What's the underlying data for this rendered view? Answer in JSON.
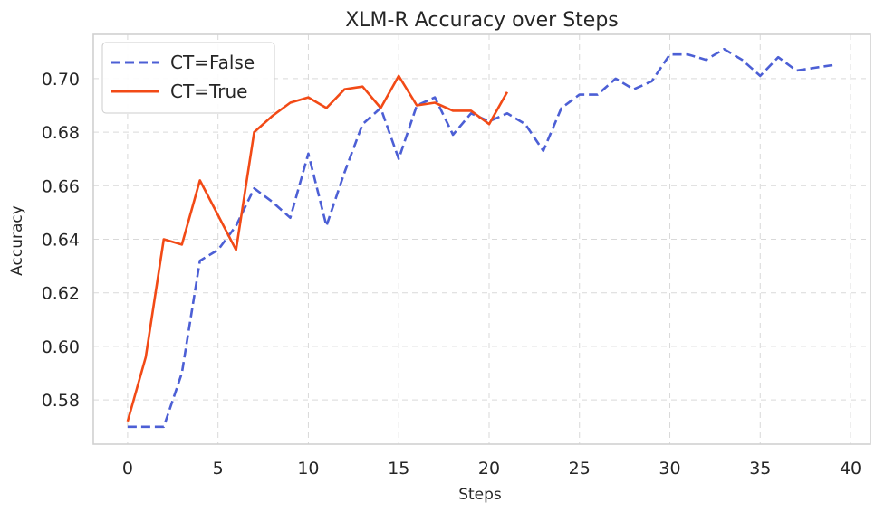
{
  "chart_data": {
    "type": "line",
    "title": "XLM-R Accuracy over Steps",
    "xlabel": "Steps",
    "ylabel": "Accuracy",
    "xlim": [
      -1.9,
      41.1
    ],
    "ylim": [
      0.5635,
      0.7165
    ],
    "xticks": [
      0,
      5,
      10,
      15,
      20,
      25,
      30,
      35,
      40
    ],
    "yticks": [
      0.58,
      0.6,
      0.62,
      0.64,
      0.66,
      0.68,
      0.7
    ],
    "ytick_labels": [
      "0.58",
      "0.60",
      "0.62",
      "0.64",
      "0.66",
      "0.68",
      "0.70"
    ],
    "grid": true,
    "legend_position": "top-left",
    "series": [
      {
        "name": "CT=False",
        "color": "#4c5fd5",
        "style": "dashed",
        "x": [
          0,
          1,
          2,
          3,
          4,
          5,
          6,
          7,
          8,
          9,
          10,
          11,
          12,
          13,
          14,
          15,
          16,
          17,
          18,
          19,
          20,
          21,
          22,
          23,
          24,
          25,
          26,
          27,
          28,
          29,
          30,
          31,
          32,
          33,
          34,
          35,
          36,
          37,
          38,
          39
        ],
        "values": [
          0.57,
          0.57,
          0.57,
          0.59,
          0.632,
          0.636,
          0.645,
          0.659,
          0.654,
          0.648,
          0.672,
          0.645,
          0.665,
          0.683,
          0.689,
          0.67,
          0.69,
          0.693,
          0.679,
          0.687,
          0.684,
          0.687,
          0.683,
          0.673,
          0.689,
          0.694,
          0.694,
          0.7,
          0.696,
          0.699,
          0.709,
          0.709,
          0.707,
          0.711,
          0.707,
          0.701,
          0.708,
          0.703,
          0.704,
          0.705
        ]
      },
      {
        "name": "CT=True",
        "color": "#f24a16",
        "style": "solid",
        "x": [
          0,
          1,
          2,
          3,
          4,
          5,
          6,
          7,
          8,
          9,
          10,
          11,
          12,
          13,
          14,
          15,
          16,
          17,
          18,
          19,
          20,
          21
        ],
        "values": [
          0.572,
          0.596,
          0.64,
          0.638,
          0.662,
          0.649,
          0.636,
          0.68,
          0.686,
          0.691,
          0.693,
          0.689,
          0.696,
          0.697,
          0.689,
          0.701,
          0.69,
          0.691,
          0.688,
          0.688,
          0.683,
          0.695
        ]
      }
    ]
  }
}
